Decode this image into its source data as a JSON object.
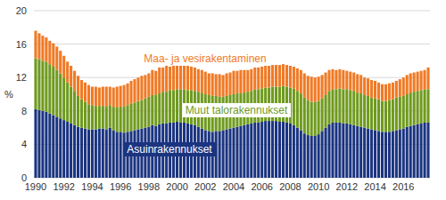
{
  "chart_data": {
    "type": "bar",
    "stacked": true,
    "y_label": "%",
    "grid": true,
    "ylim": [
      0,
      20
    ],
    "yticks": [
      0,
      4,
      8,
      12,
      16,
      20
    ],
    "categories": [
      "1990",
      null,
      null,
      null,
      null,
      null,
      null,
      null,
      "1992",
      null,
      null,
      null,
      null,
      null,
      null,
      null,
      "1994",
      null,
      null,
      null,
      null,
      null,
      null,
      null,
      "1996",
      null,
      null,
      null,
      null,
      null,
      null,
      null,
      "1998",
      null,
      null,
      null,
      null,
      null,
      null,
      null,
      "2000",
      null,
      null,
      null,
      null,
      null,
      null,
      null,
      "2002",
      null,
      null,
      null,
      null,
      null,
      null,
      null,
      "2004",
      null,
      null,
      null,
      null,
      null,
      null,
      null,
      "2006",
      null,
      null,
      null,
      null,
      null,
      null,
      null,
      "2008",
      null,
      null,
      null,
      null,
      null,
      null,
      null,
      "2010",
      null,
      null,
      null,
      null,
      null,
      null,
      null,
      "2012",
      null,
      null,
      null,
      null,
      null,
      null,
      null,
      "2014",
      null,
      null,
      null,
      null,
      null,
      null,
      null,
      "2016",
      null,
      null,
      null,
      null,
      null,
      null,
      null
    ],
    "series": [
      {
        "name": "Asuinrakennukset",
        "color": "#1b3480",
        "values": [
          8.2,
          8.1,
          8.0,
          7.9,
          7.7,
          7.5,
          7.3,
          7.1,
          6.9,
          6.7,
          6.5,
          6.3,
          6.1,
          6.0,
          5.9,
          5.8,
          5.8,
          5.8,
          5.9,
          5.9,
          5.8,
          6.0,
          5.7,
          5.5,
          5.5,
          5.4,
          5.5,
          5.6,
          5.7,
          5.8,
          5.9,
          6.0,
          6.1,
          6.3,
          6.2,
          6.4,
          6.5,
          6.5,
          6.6,
          6.6,
          6.7,
          6.6,
          6.6,
          6.5,
          6.4,
          6.3,
          6.1,
          5.9,
          5.7,
          5.6,
          5.5,
          5.6,
          5.6,
          5.7,
          5.8,
          5.9,
          6.0,
          6.1,
          6.2,
          6.3,
          6.4,
          6.5,
          6.6,
          6.6,
          6.7,
          6.8,
          6.8,
          6.8,
          6.8,
          6.7,
          6.7,
          6.6,
          6.5,
          6.3,
          6.0,
          5.7,
          5.3,
          5.1,
          5.0,
          5.0,
          5.2,
          5.6,
          6.0,
          6.4,
          6.6,
          6.6,
          6.6,
          6.5,
          6.5,
          6.4,
          6.3,
          6.2,
          6.1,
          6.0,
          5.9,
          5.8,
          5.7,
          5.6,
          5.5,
          5.5,
          5.5,
          5.6,
          5.7,
          5.8,
          5.9,
          6.1,
          6.2,
          6.3,
          6.4,
          6.5,
          6.6,
          6.6
        ]
      },
      {
        "name": "Muut talorakennukset",
        "color": "#6f9a1e",
        "values": [
          6.1,
          6.1,
          6.0,
          6.0,
          5.9,
          5.8,
          5.6,
          5.4,
          5.1,
          4.7,
          4.4,
          4.1,
          3.7,
          3.4,
          3.2,
          3.0,
          2.9,
          2.8,
          2.7,
          2.7,
          2.7,
          2.7,
          2.8,
          2.9,
          3.0,
          3.1,
          3.2,
          3.3,
          3.3,
          3.4,
          3.4,
          3.5,
          3.6,
          3.6,
          3.7,
          3.7,
          3.8,
          3.8,
          3.9,
          3.9,
          3.9,
          4.0,
          4.0,
          4.0,
          4.1,
          4.1,
          4.2,
          4.3,
          4.3,
          4.3,
          4.3,
          4.2,
          4.1,
          4.0,
          4.0,
          4.0,
          4.0,
          4.0,
          3.9,
          3.9,
          3.9,
          3.9,
          4.0,
          4.0,
          4.0,
          4.0,
          4.0,
          4.1,
          4.1,
          4.2,
          4.3,
          4.3,
          4.3,
          4.4,
          4.4,
          4.4,
          4.3,
          4.2,
          4.1,
          4.1,
          4.0,
          3.9,
          3.9,
          4.0,
          4.0,
          4.0,
          4.1,
          4.1,
          4.1,
          4.1,
          4.1,
          4.0,
          4.0,
          3.9,
          3.9,
          3.8,
          3.8,
          3.8,
          3.7,
          3.7,
          3.8,
          3.8,
          3.9,
          3.9,
          3.9,
          3.9,
          4.0,
          4.0,
          4.0,
          4.0,
          4.0,
          4.0
        ]
      },
      {
        "name": "Maa- ja vesirakentaminen",
        "color": "#f07a26",
        "values": [
          3.3,
          3.1,
          3.0,
          2.9,
          2.8,
          2.8,
          2.8,
          2.7,
          2.6,
          2.5,
          2.5,
          2.4,
          2.4,
          2.3,
          2.3,
          2.3,
          2.2,
          2.3,
          2.2,
          2.3,
          2.4,
          2.2,
          2.3,
          2.5,
          2.5,
          2.6,
          2.6,
          2.7,
          2.8,
          2.8,
          2.9,
          2.8,
          2.8,
          3.0,
          2.9,
          3.1,
          2.9,
          3.1,
          2.8,
          3.0,
          2.9,
          3.0,
          3.0,
          2.9,
          2.8,
          2.8,
          2.7,
          2.7,
          2.7,
          2.6,
          2.7,
          2.6,
          2.7,
          2.6,
          2.7,
          2.7,
          2.8,
          2.7,
          2.8,
          2.7,
          2.6,
          2.6,
          2.6,
          2.6,
          2.6,
          2.6,
          2.6,
          2.6,
          2.6,
          2.6,
          2.6,
          2.6,
          2.6,
          2.6,
          2.7,
          2.8,
          2.9,
          2.9,
          3.0,
          2.9,
          2.9,
          2.8,
          2.7,
          2.5,
          2.4,
          2.3,
          2.3,
          2.3,
          2.2,
          2.2,
          2.2,
          2.2,
          2.2,
          2.1,
          2.1,
          2.1,
          2.1,
          2.0,
          2.0,
          2.0,
          2.0,
          2.0,
          2.0,
          2.1,
          2.2,
          2.3,
          2.3,
          2.3,
          2.3,
          2.3,
          2.3,
          2.6
        ]
      }
    ]
  }
}
